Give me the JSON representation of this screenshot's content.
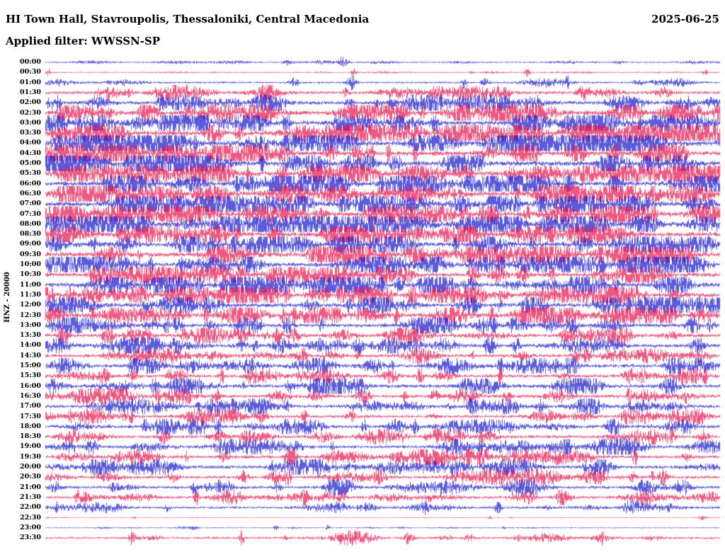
{
  "header": {
    "station_title": "HI Town Hall, Stavroupolis, Thessaloniki, Central Macedonia",
    "date": "2025-06-25",
    "filter_label": "Applied filter: WWSSN-SP"
  },
  "axis": {
    "channel_label": "HNZ - 20000"
  },
  "chart_data": {
    "type": "line",
    "subtype": "helicorder-seismogram",
    "title": "HI Town Hall, Stavroupolis, Thessaloniki, Central Macedonia",
    "date": "2025-06-25",
    "filter": "WWSSN-SP",
    "channel": "HNZ",
    "scale": 20000,
    "row_duration_minutes": 30,
    "time_range": "00:00 - 23:30",
    "legend_position": "none",
    "grid": false,
    "colors": {
      "blue": "#1414cc",
      "red": "#e8114a"
    },
    "rows": [
      {
        "label": "00:00",
        "color": "blue",
        "amplitude": 1.0,
        "seed": 1
      },
      {
        "label": "00:30",
        "color": "red",
        "amplitude": 0.9,
        "seed": 2
      },
      {
        "label": "01:00",
        "color": "blue",
        "amplitude": 1.4,
        "seed": 3
      },
      {
        "label": "01:30",
        "color": "red",
        "amplitude": 2.2,
        "seed": 4
      },
      {
        "label": "02:00",
        "color": "blue",
        "amplitude": 2.6,
        "seed": 5
      },
      {
        "label": "02:30",
        "color": "red",
        "amplitude": 3.2,
        "seed": 6
      },
      {
        "label": "03:00",
        "color": "blue",
        "amplitude": 3.2,
        "seed": 7
      },
      {
        "label": "03:30",
        "color": "red",
        "amplitude": 3.6,
        "seed": 8
      },
      {
        "label": "04:00",
        "color": "blue",
        "amplitude": 3.8,
        "seed": 9
      },
      {
        "label": "04:30",
        "color": "red",
        "amplitude": 3.4,
        "seed": 10
      },
      {
        "label": "05:00",
        "color": "blue",
        "amplitude": 3.8,
        "seed": 11
      },
      {
        "label": "05:30",
        "color": "red",
        "amplitude": 3.6,
        "seed": 12
      },
      {
        "label": "06:00",
        "color": "blue",
        "amplitude": 3.4,
        "seed": 13
      },
      {
        "label": "06:30",
        "color": "red",
        "amplitude": 3.4,
        "seed": 14
      },
      {
        "label": "07:00",
        "color": "blue",
        "amplitude": 3.6,
        "seed": 15
      },
      {
        "label": "07:30",
        "color": "red",
        "amplitude": 3.6,
        "seed": 16
      },
      {
        "label": "08:00",
        "color": "blue",
        "amplitude": 3.4,
        "seed": 17
      },
      {
        "label": "08:30",
        "color": "red",
        "amplitude": 3.2,
        "seed": 18
      },
      {
        "label": "09:00",
        "color": "blue",
        "amplitude": 3.4,
        "seed": 19
      },
      {
        "label": "09:30",
        "color": "red",
        "amplitude": 3.4,
        "seed": 20
      },
      {
        "label": "10:00",
        "color": "blue",
        "amplitude": 3.2,
        "seed": 21
      },
      {
        "label": "10:30",
        "color": "red",
        "amplitude": 3.0,
        "seed": 22
      },
      {
        "label": "11:00",
        "color": "blue",
        "amplitude": 3.4,
        "seed": 23
      },
      {
        "label": "11:30",
        "color": "red",
        "amplitude": 3.2,
        "seed": 24
      },
      {
        "label": "12:00",
        "color": "blue",
        "amplitude": 3.0,
        "seed": 25
      },
      {
        "label": "12:30",
        "color": "red",
        "amplitude": 3.0,
        "seed": 26
      },
      {
        "label": "13:00",
        "color": "blue",
        "amplitude": 2.8,
        "seed": 27
      },
      {
        "label": "13:30",
        "color": "red",
        "amplitude": 2.6,
        "seed": 28
      },
      {
        "label": "14:00",
        "color": "blue",
        "amplitude": 2.6,
        "seed": 29
      },
      {
        "label": "14:30",
        "color": "red",
        "amplitude": 2.4,
        "seed": 30
      },
      {
        "label": "15:00",
        "color": "blue",
        "amplitude": 2.6,
        "seed": 31
      },
      {
        "label": "15:30",
        "color": "red",
        "amplitude": 2.4,
        "seed": 32
      },
      {
        "label": "16:00",
        "color": "blue",
        "amplitude": 2.6,
        "seed": 33
      },
      {
        "label": "16:30",
        "color": "red",
        "amplitude": 2.4,
        "seed": 34
      },
      {
        "label": "17:00",
        "color": "blue",
        "amplitude": 2.4,
        "seed": 35
      },
      {
        "label": "17:30",
        "color": "red",
        "amplitude": 2.2,
        "seed": 36
      },
      {
        "label": "18:00",
        "color": "blue",
        "amplitude": 2.4,
        "seed": 37
      },
      {
        "label": "18:30",
        "color": "red",
        "amplitude": 2.2,
        "seed": 38
      },
      {
        "label": "19:00",
        "color": "blue",
        "amplitude": 2.2,
        "seed": 39
      },
      {
        "label": "19:30",
        "color": "red",
        "amplitude": 2.4,
        "seed": 40
      },
      {
        "label": "20:00",
        "color": "blue",
        "amplitude": 2.4,
        "seed": 41
      },
      {
        "label": "20:30",
        "color": "red",
        "amplitude": 2.2,
        "seed": 42
      },
      {
        "label": "21:00",
        "color": "blue",
        "amplitude": 2.2,
        "seed": 43
      },
      {
        "label": "21:30",
        "color": "red",
        "amplitude": 2.0,
        "seed": 44
      },
      {
        "label": "22:00",
        "color": "blue",
        "amplitude": 1.8,
        "seed": 45
      },
      {
        "label": "22:30",
        "color": "red",
        "amplitude": 0.5,
        "seed": 46
      },
      {
        "label": "23:00",
        "color": "blue",
        "amplitude": 0.8,
        "seed": 47
      },
      {
        "label": "23:30",
        "color": "red",
        "amplitude": 1.6,
        "seed": 48
      }
    ]
  }
}
